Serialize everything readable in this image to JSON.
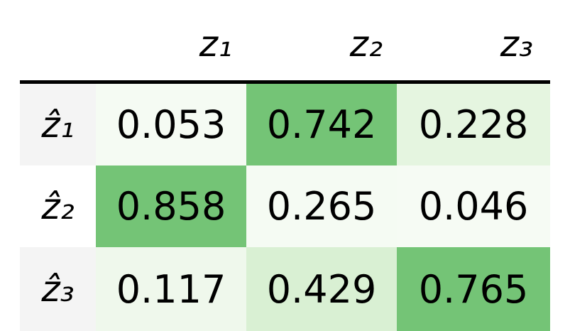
{
  "table": {
    "columns": [
      "z₁",
      "z₂",
      "z₃"
    ],
    "rows": [
      {
        "label": "ẑ₁",
        "cells": [
          "0.053",
          "0.742",
          "0.228"
        ],
        "colors": [
          "#f5fbf3",
          "#74c476",
          "#e5f5e0"
        ]
      },
      {
        "label": "ẑ₂",
        "cells": [
          "0.858",
          "0.265",
          "0.046"
        ],
        "colors": [
          "#74c476",
          "#f5fbf3",
          "#f6fbf4"
        ]
      },
      {
        "label": "ẑ₃",
        "cells": [
          "0.117",
          "0.429",
          "0.765"
        ],
        "colors": [
          "#eff8ec",
          "#d9f0d3",
          "#74c476"
        ]
      }
    ],
    "label_colors": [
      "#f4f4f4",
      "#ffffff",
      "#f4f4f4"
    ]
  }
}
